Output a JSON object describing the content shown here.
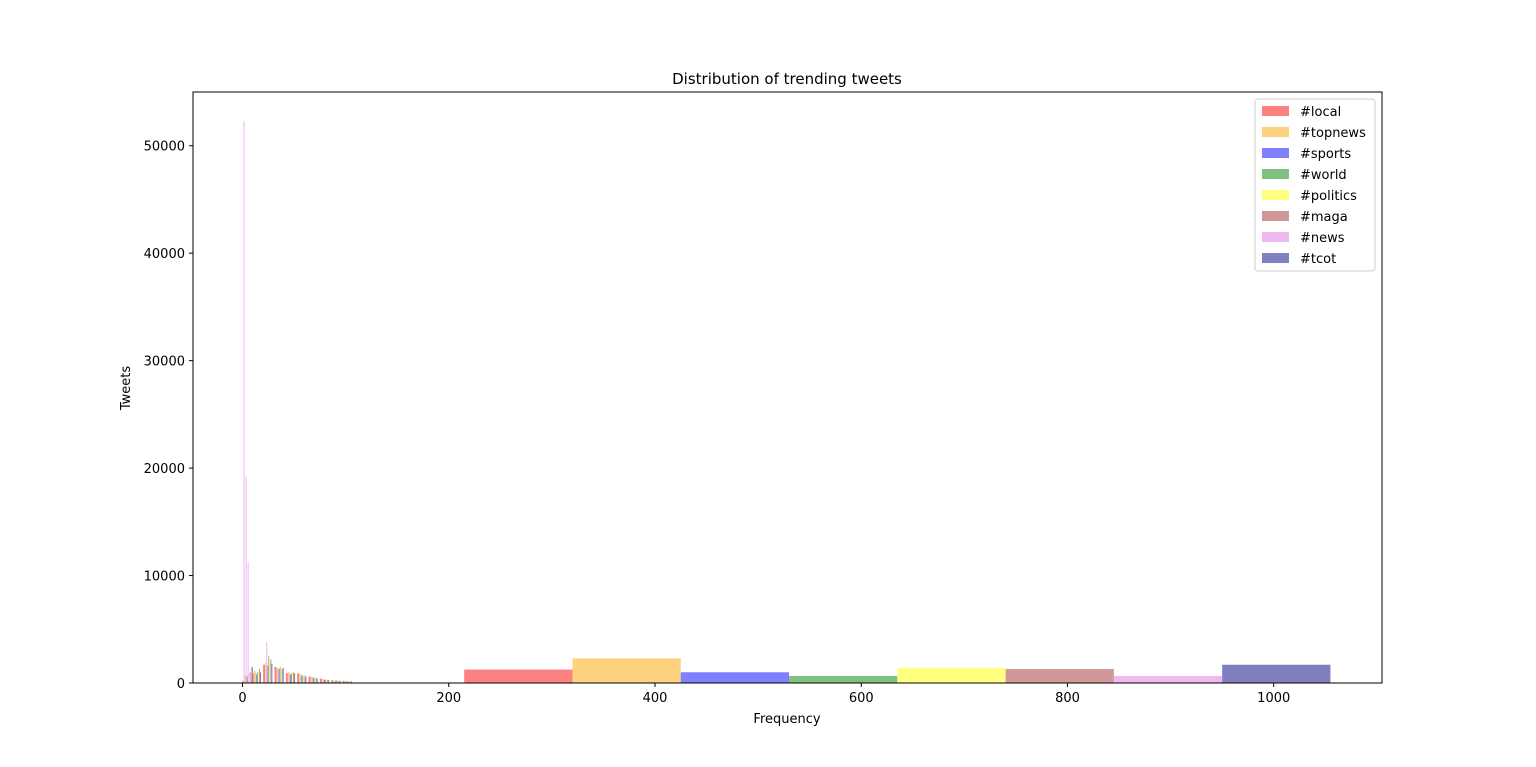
{
  "chart_data": {
    "type": "bar",
    "title": "Distribution of trending tweets",
    "xlabel": "Frequency",
    "ylabel": "Tweets",
    "xlim": [
      -48,
      1105
    ],
    "ylim": [
      0,
      55000
    ],
    "xticks": [
      "0",
      "200",
      "400",
      "600",
      "800",
      "1000"
    ],
    "xtick_values": [
      0,
      200,
      400,
      600,
      800,
      1000
    ],
    "yticks": [
      "0",
      "10000",
      "20000",
      "30000",
      "40000",
      "50000"
    ],
    "ytick_values": [
      0,
      10000,
      20000,
      30000,
      40000,
      50000
    ],
    "legend_position": "top-right",
    "grid": false,
    "series": [
      {
        "name": "#local",
        "color": "#ff8080",
        "bars": [
          {
            "x0": 0,
            "x1": 2,
            "y": 200
          },
          {
            "x0": 9,
            "x1": 11,
            "y": 900
          },
          {
            "x0": 20,
            "x1": 22,
            "y": 1700
          },
          {
            "x0": 31,
            "x1": 33,
            "y": 1500
          },
          {
            "x0": 42,
            "x1": 44,
            "y": 900
          },
          {
            "x0": 53,
            "x1": 55,
            "y": 900
          },
          {
            "x0": 64,
            "x1": 66,
            "y": 600
          },
          {
            "x0": 75,
            "x1": 77,
            "y": 400
          },
          {
            "x0": 86,
            "x1": 88,
            "y": 250
          },
          {
            "x0": 97,
            "x1": 99,
            "y": 200
          },
          {
            "x0": 215,
            "x1": 320,
            "y": 1250
          }
        ]
      },
      {
        "name": "#topnews",
        "color": "#ffd280",
        "bars": [
          {
            "x0": 2,
            "x1": 4,
            "y": 700
          },
          {
            "x0": 11,
            "x1": 13,
            "y": 1100
          },
          {
            "x0": 22,
            "x1": 24,
            "y": 1900
          },
          {
            "x0": 33,
            "x1": 35,
            "y": 1400
          },
          {
            "x0": 44,
            "x1": 46,
            "y": 1000
          },
          {
            "x0": 55,
            "x1": 57,
            "y": 800
          },
          {
            "x0": 66,
            "x1": 68,
            "y": 600
          },
          {
            "x0": 77,
            "x1": 79,
            "y": 350
          },
          {
            "x0": 88,
            "x1": 90,
            "y": 250
          },
          {
            "x0": 99,
            "x1": 101,
            "y": 200
          },
          {
            "x0": 320,
            "x1": 425,
            "y": 2300
          }
        ]
      },
      {
        "name": "#sports",
        "color": "#8080ff",
        "bars": [
          {
            "x0": 4,
            "x1": 5,
            "y": 600
          },
          {
            "x0": 13,
            "x1": 14,
            "y": 800
          },
          {
            "x0": 24,
            "x1": 25,
            "y": 1600
          },
          {
            "x0": 35,
            "x1": 36,
            "y": 1300
          },
          {
            "x0": 46,
            "x1": 47,
            "y": 800
          },
          {
            "x0": 57,
            "x1": 58,
            "y": 700
          },
          {
            "x0": 68,
            "x1": 69,
            "y": 500
          },
          {
            "x0": 79,
            "x1": 80,
            "y": 300
          },
          {
            "x0": 90,
            "x1": 91,
            "y": 200
          },
          {
            "x0": 101,
            "x1": 102,
            "y": 150
          },
          {
            "x0": 425,
            "x1": 530,
            "y": 1000
          }
        ]
      },
      {
        "name": "#world",
        "color": "#80c080",
        "bars": [
          {
            "x0": 5,
            "x1": 6,
            "y": 900
          },
          {
            "x0": 14,
            "x1": 15,
            "y": 1000
          },
          {
            "x0": 25,
            "x1": 26,
            "y": 2500
          },
          {
            "x0": 36,
            "x1": 37,
            "y": 1500
          },
          {
            "x0": 47,
            "x1": 48,
            "y": 900
          },
          {
            "x0": 58,
            "x1": 59,
            "y": 700
          },
          {
            "x0": 69,
            "x1": 70,
            "y": 500
          },
          {
            "x0": 80,
            "x1": 81,
            "y": 300
          },
          {
            "x0": 91,
            "x1": 92,
            "y": 250
          },
          {
            "x0": 102,
            "x1": 103,
            "y": 150
          },
          {
            "x0": 530,
            "x1": 635,
            "y": 650
          }
        ]
      },
      {
        "name": "#politics",
        "color": "#ffff80",
        "bars": [
          {
            "x0": 6,
            "x1": 7,
            "y": 800
          },
          {
            "x0": 15,
            "x1": 16,
            "y": 1200
          },
          {
            "x0": 26,
            "x1": 27,
            "y": 2300
          },
          {
            "x0": 37,
            "x1": 38,
            "y": 1400
          },
          {
            "x0": 48,
            "x1": 49,
            "y": 1100
          },
          {
            "x0": 59,
            "x1": 60,
            "y": 700
          },
          {
            "x0": 70,
            "x1": 71,
            "y": 500
          },
          {
            "x0": 81,
            "x1": 82,
            "y": 350
          },
          {
            "x0": 92,
            "x1": 93,
            "y": 250
          },
          {
            "x0": 103,
            "x1": 104,
            "y": 150
          },
          {
            "x0": 635,
            "x1": 740,
            "y": 1400
          }
        ]
      },
      {
        "name": "#maga",
        "color": "#d09898",
        "bars": [
          {
            "x0": 7,
            "x1": 8,
            "y": 1000
          },
          {
            "x0": 16,
            "x1": 17,
            "y": 1300
          },
          {
            "x0": 27,
            "x1": 28,
            "y": 2200
          },
          {
            "x0": 38,
            "x1": 39,
            "y": 1300
          },
          {
            "x0": 49,
            "x1": 50,
            "y": 1000
          },
          {
            "x0": 60,
            "x1": 61,
            "y": 700
          },
          {
            "x0": 71,
            "x1": 72,
            "y": 500
          },
          {
            "x0": 82,
            "x1": 83,
            "y": 300
          },
          {
            "x0": 93,
            "x1": 94,
            "y": 200
          },
          {
            "x0": 104,
            "x1": 105,
            "y": 150
          },
          {
            "x0": 740,
            "x1": 845,
            "y": 1300
          }
        ]
      },
      {
        "name": "#news",
        "color": "#f0b8f0",
        "bars": [
          {
            "x0": 1,
            "x1": 2,
            "y": 52300
          },
          {
            "x0": 3,
            "x1": 4,
            "y": 19200
          },
          {
            "x0": 5,
            "x1": 6,
            "y": 11200
          },
          {
            "x0": 8,
            "x1": 9,
            "y": 1400
          },
          {
            "x0": 23,
            "x1": 24,
            "y": 3800
          },
          {
            "x0": 34,
            "x1": 35,
            "y": 1200
          },
          {
            "x0": 45,
            "x1": 46,
            "y": 800
          },
          {
            "x0": 56,
            "x1": 57,
            "y": 600
          },
          {
            "x0": 67,
            "x1": 68,
            "y": 400
          },
          {
            "x0": 78,
            "x1": 79,
            "y": 300
          },
          {
            "x0": 845,
            "x1": 950,
            "y": 650
          }
        ]
      },
      {
        "name": "#tcot",
        "color": "#8080c0",
        "bars": [
          {
            "x0": 9,
            "x1": 10,
            "y": 1500
          },
          {
            "x0": 17,
            "x1": 18,
            "y": 1000
          },
          {
            "x0": 28,
            "x1": 29,
            "y": 1800
          },
          {
            "x0": 39,
            "x1": 40,
            "y": 1400
          },
          {
            "x0": 50,
            "x1": 51,
            "y": 900
          },
          {
            "x0": 61,
            "x1": 62,
            "y": 600
          },
          {
            "x0": 72,
            "x1": 73,
            "y": 400
          },
          {
            "x0": 83,
            "x1": 84,
            "y": 300
          },
          {
            "x0": 94,
            "x1": 95,
            "y": 200
          },
          {
            "x0": 105,
            "x1": 106,
            "y": 150
          },
          {
            "x0": 950,
            "x1": 1055,
            "y": 1700
          }
        ]
      }
    ]
  }
}
